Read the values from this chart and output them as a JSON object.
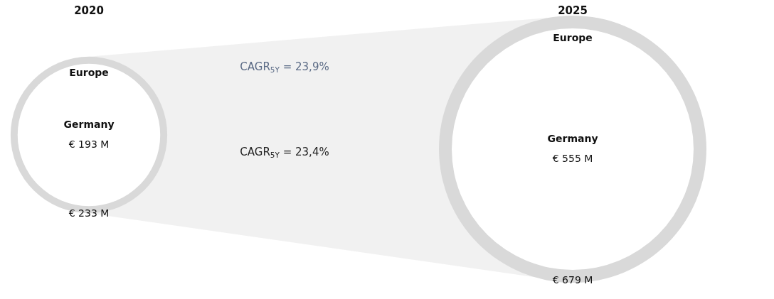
{
  "chart_data": {
    "type": "other",
    "categories": [
      "2020",
      "2025"
    ],
    "series": [
      {
        "name": "Europe",
        "color": "#d9d9d9",
        "values": [
          233,
          679
        ],
        "value_labels": [
          "€ 233 M",
          "€ 679 M"
        ]
      },
      {
        "name": "Germany",
        "color": "#ffffff",
        "values": [
          193,
          555
        ],
        "value_labels": [
          "€ 193 M",
          "€ 555 M"
        ]
      }
    ],
    "annotations": [
      "CAGR$_{5Y}$ = 23,9%",
      "CAGR$_{5Y}$ = 23,4%"
    ]
  }
}
